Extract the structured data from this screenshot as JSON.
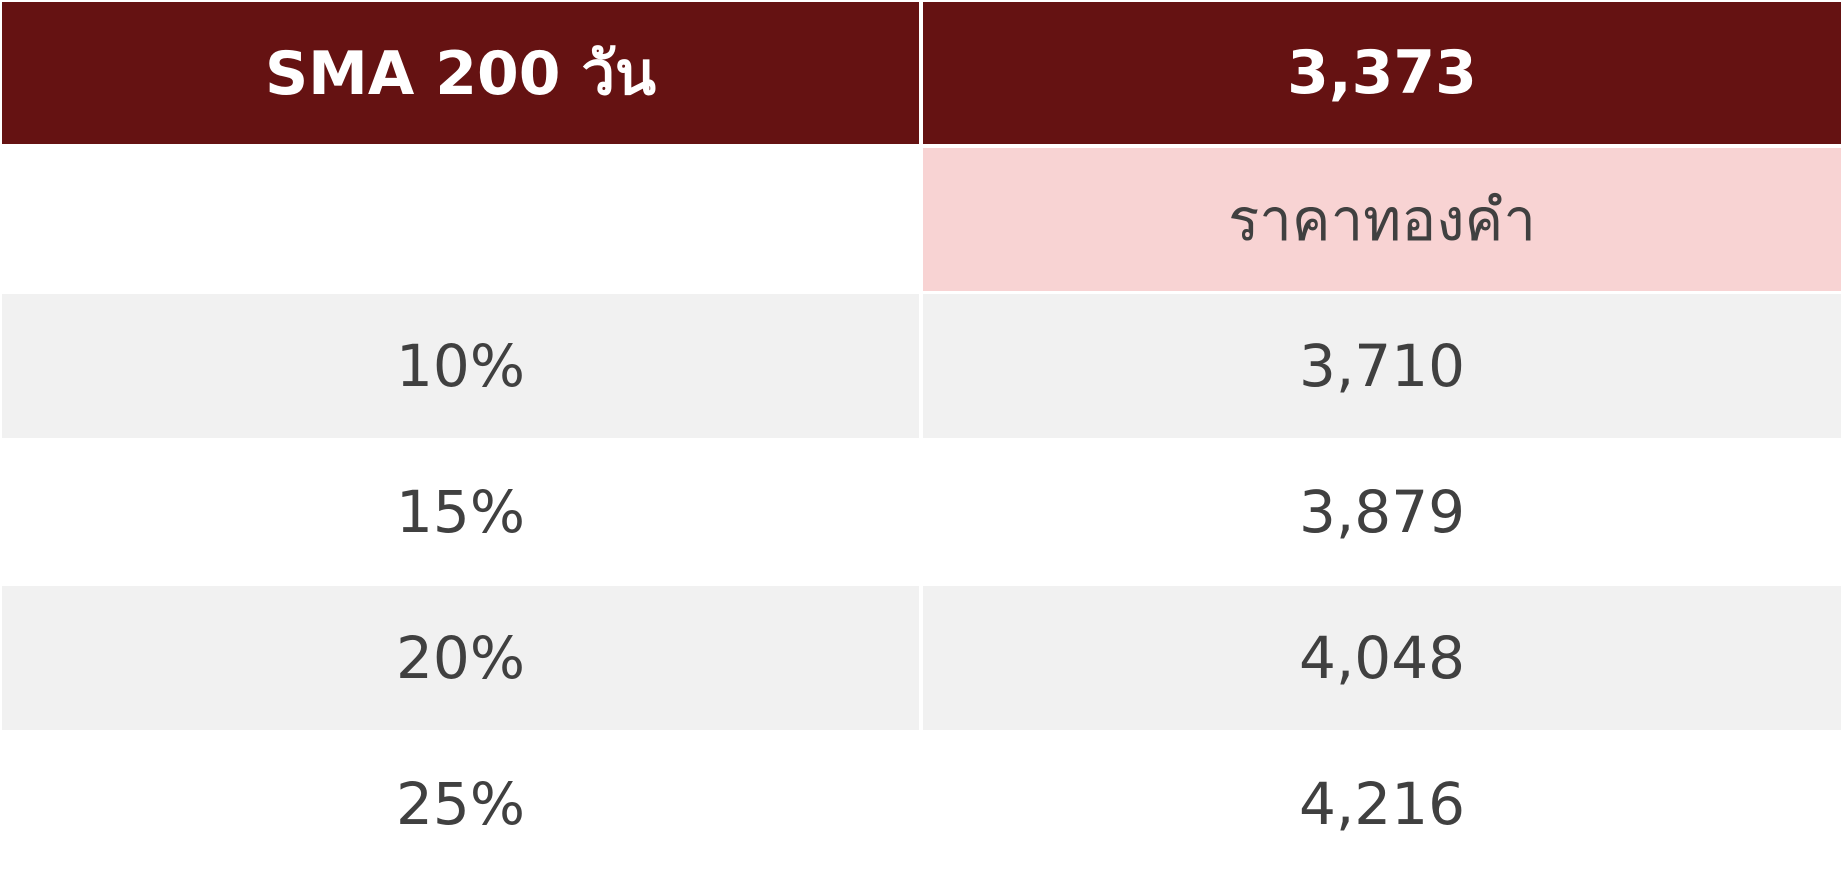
{
  "table": {
    "header": [
      "SMA 200 วัน",
      "3,373"
    ],
    "subheader": "ราคาทองคำ",
    "rows": [
      [
        "10%",
        "3,710"
      ],
      [
        "15%",
        "3,879"
      ],
      [
        "20%",
        "4,048"
      ],
      [
        "25%",
        "4,216"
      ]
    ]
  }
}
